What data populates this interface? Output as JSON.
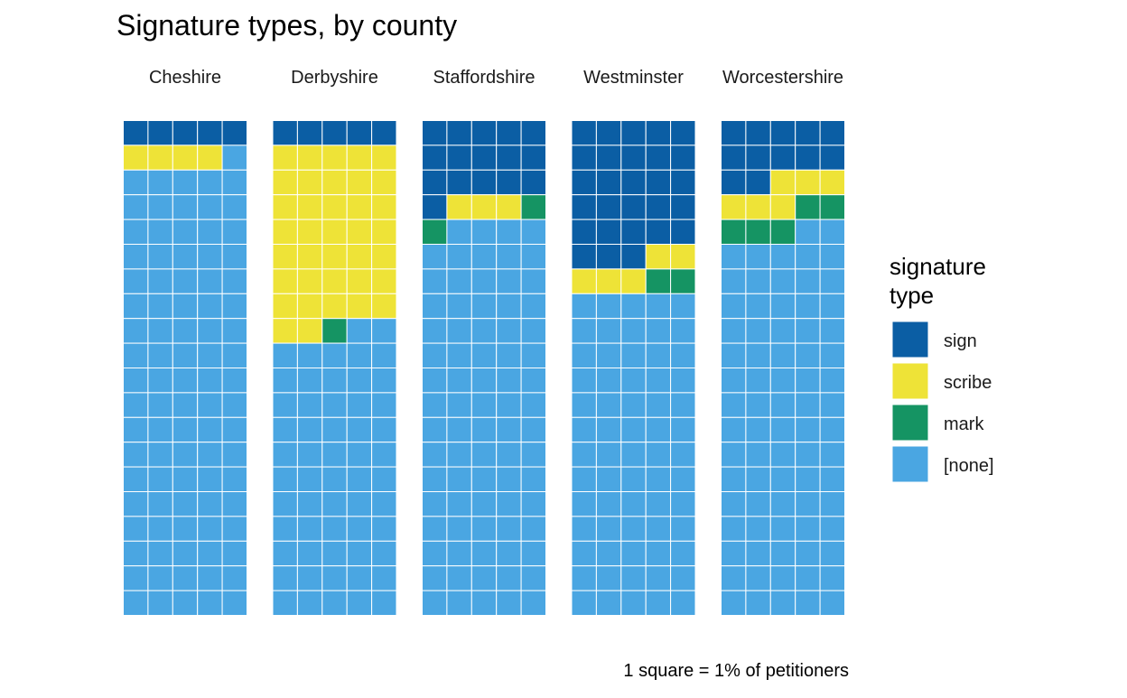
{
  "chart_data": {
    "type": "waffle",
    "title": "Signature types, by county",
    "caption": "1 square = 1% of petitioners",
    "legend": {
      "title_lines": [
        "signature",
        "type"
      ],
      "position": "right"
    },
    "grid": {
      "columns": 5,
      "rows": 20,
      "fill_order": "row-wise from top, left to right"
    },
    "categories": [
      "sign",
      "scribe",
      "mark",
      "[none]"
    ],
    "colors": {
      "sign": "#0b5ea4",
      "scribe": "#eee337",
      "mark": "#159463",
      "[none]": "#4aa6e2"
    },
    "panels": [
      {
        "county": "Cheshire",
        "values": {
          "sign": 5,
          "scribe": 4,
          "mark": 0,
          "[none]": 91
        }
      },
      {
        "county": "Derbyshire",
        "values": {
          "sign": 5,
          "scribe": 37,
          "mark": 1,
          "[none]": 57
        }
      },
      {
        "county": "Staffordshire",
        "values": {
          "sign": 16,
          "scribe": 3,
          "mark": 2,
          "[none]": 79
        }
      },
      {
        "county": "Westminster",
        "values": {
          "sign": 28,
          "scribe": 5,
          "mark": 2,
          "[none]": 65
        }
      },
      {
        "county": "Worcestershire",
        "values": {
          "sign": 12,
          "scribe": 6,
          "mark": 5,
          "[none]": 77
        }
      }
    ]
  }
}
